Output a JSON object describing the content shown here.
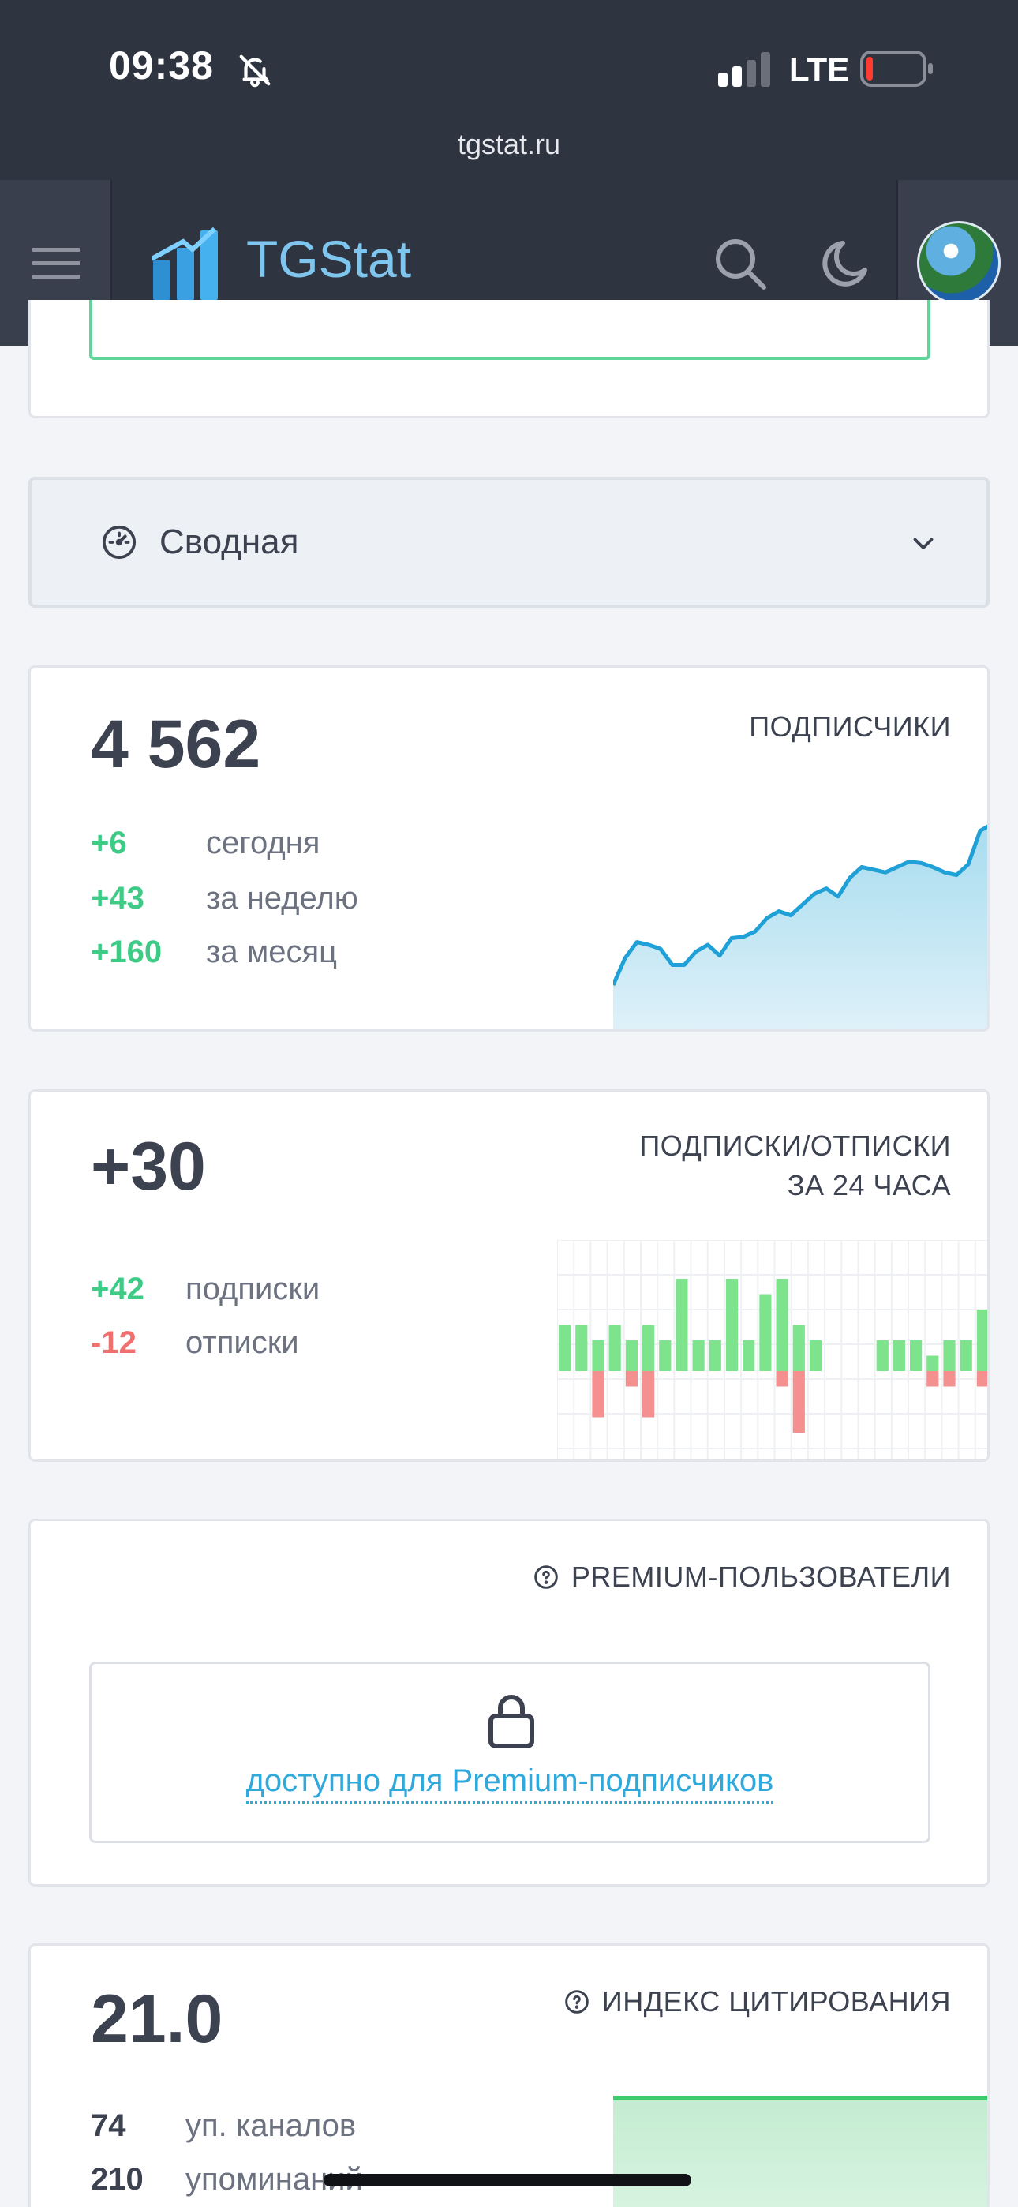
{
  "status_bar": {
    "time": "09:38",
    "network": "LTE",
    "url": "tgstat.ru",
    "icons": [
      "bell-muted-icon",
      "signal-icon",
      "battery-low-icon"
    ],
    "battery_color": "#ff3b30"
  },
  "header": {
    "brand": "TGStat",
    "brand_color": "#7fc6ef",
    "icons": [
      "menu-icon",
      "logo-icon",
      "search-icon",
      "moon-icon",
      "avatar"
    ]
  },
  "dropdown": {
    "label": "Сводная",
    "icon": "gauge-icon"
  },
  "subscribers": {
    "value": "4 562",
    "label": "ПОДПИСЧИКИ",
    "rows": [
      {
        "value": "+6",
        "label": "сегодня"
      },
      {
        "value": "+43",
        "label": "за неделю"
      },
      {
        "value": "+160",
        "label": "за месяц"
      }
    ],
    "sparkline": [
      0.0,
      0.2,
      0.32,
      0.3,
      0.27,
      0.15,
      0.15,
      0.25,
      0.3,
      0.22,
      0.35,
      0.36,
      0.4,
      0.5,
      0.55,
      0.52,
      0.6,
      0.68,
      0.72,
      0.66,
      0.8,
      0.88,
      0.86,
      0.84,
      0.88,
      0.92,
      0.91,
      0.88,
      0.84,
      0.82,
      0.9,
      1.15,
      1.2
    ]
  },
  "flow": {
    "value": "+30",
    "label_line1": "ПОДПИСКИ/ОТПИСКИ",
    "label_line2": "ЗА 24 ЧАСА",
    "rows": [
      {
        "value": "+42",
        "label": "подписки"
      },
      {
        "value": "-12",
        "label": "отписки"
      }
    ],
    "chart_data": {
      "type": "bar",
      "series": [
        {
          "name": "подписки",
          "values": [
            3,
            3,
            2,
            3,
            2,
            3,
            2,
            6,
            2,
            2,
            6,
            2,
            5,
            6,
            3,
            2,
            0,
            0,
            0,
            2,
            2,
            2,
            1,
            2,
            2,
            4
          ]
        },
        {
          "name": "отписки",
          "values": [
            0,
            0,
            -3,
            0,
            -1,
            -3,
            0,
            0,
            0,
            0,
            0,
            0,
            0,
            -1,
            -4,
            0,
            0,
            0,
            0,
            0,
            0,
            0,
            -1,
            -1,
            0,
            -1
          ]
        }
      ],
      "colors": {
        "positive": "#7ee38d",
        "negative": "#f59090"
      }
    }
  },
  "premium": {
    "label": "PREMIUM-ПОЛЬЗОВАТЕЛИ",
    "locked_text": "доступно для Premium-подписчиков",
    "icon": "lock-icon"
  },
  "citation": {
    "value": "21.0",
    "label": "ИНДЕКС ЦИТИРОВАНИЯ",
    "rows": [
      {
        "value": "74",
        "label": "уп. каналов"
      },
      {
        "value": "210",
        "label": "упоминаний"
      }
    ]
  },
  "colors": {
    "positive": "#3ecb86",
    "negative": "#f07070",
    "header_bg": "#2f3441",
    "link": "#2fa8dc"
  }
}
